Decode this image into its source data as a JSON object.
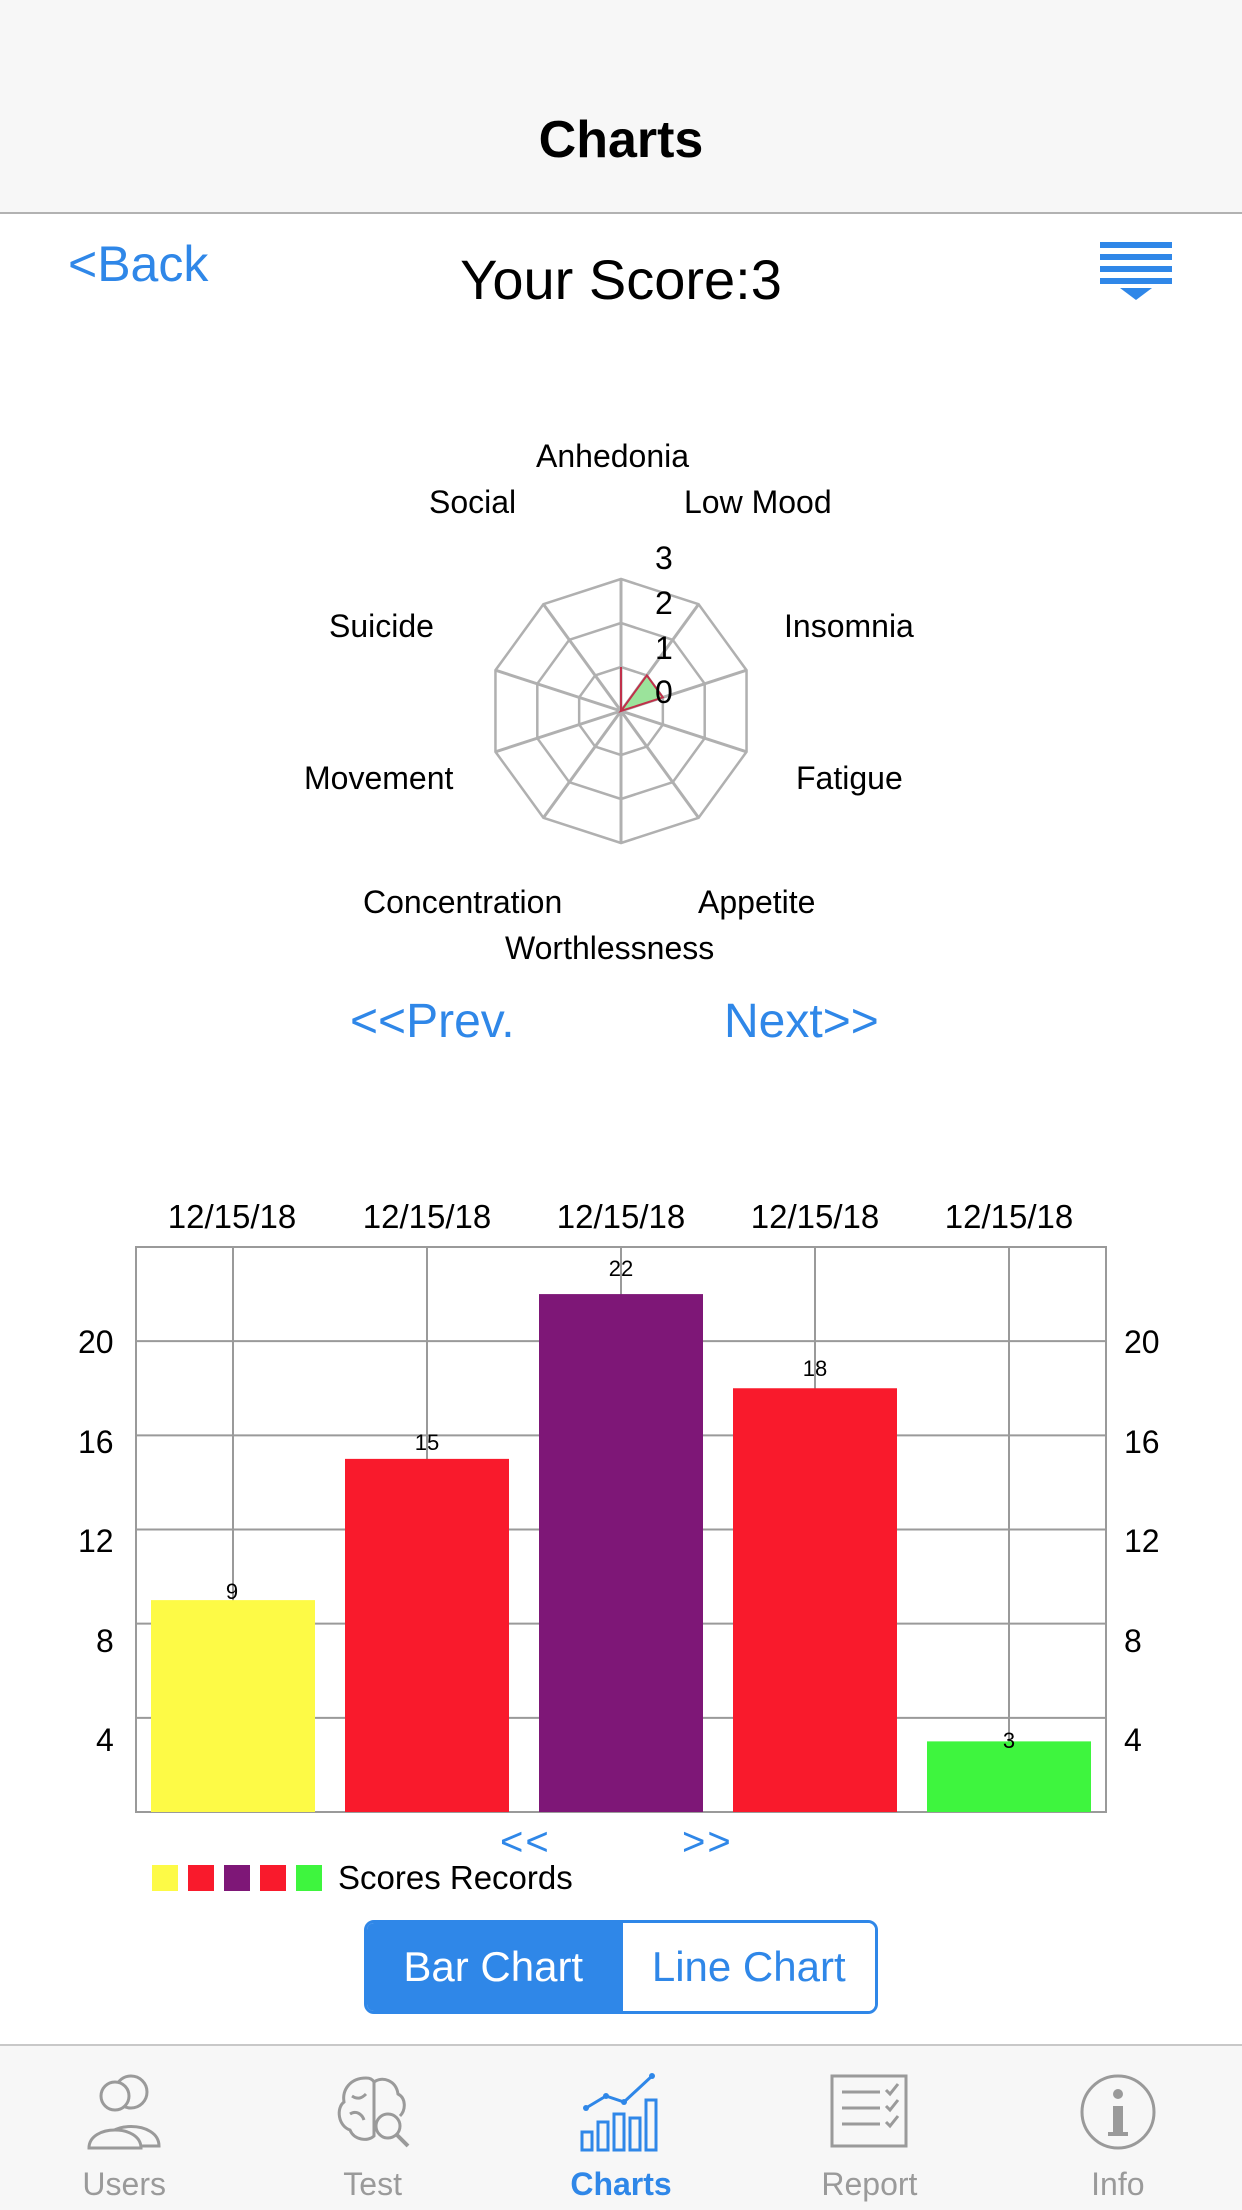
{
  "navbar": {
    "title": "Charts"
  },
  "header": {
    "back_label": "<Back",
    "score_label": "Your Score:3",
    "menu_icon": "menu-filter-icon"
  },
  "radar": {
    "labels": [
      "Anhedonia",
      "Low Mood",
      "Insomnia",
      "Fatigue",
      "Appetite",
      "Worthlessness",
      "Concentration",
      "Movement",
      "Suicide",
      "Social"
    ],
    "ticks": [
      "3",
      "2",
      "1",
      "0"
    ],
    "max": 3,
    "values": [
      0,
      1,
      1,
      0,
      0,
      0,
      0,
      0,
      0,
      0
    ],
    "colors": {
      "fill": "#9be39b",
      "outline": "#c0304a",
      "grid": "#b0b0b0"
    }
  },
  "pager": {
    "prev": "<<Prev.",
    "next": "Next>>"
  },
  "chart_data": {
    "type": "bar",
    "categories": [
      "12/15/18",
      "12/15/18",
      "12/15/18",
      "12/15/18",
      "12/15/18"
    ],
    "values": [
      9,
      15,
      22,
      18,
      3
    ],
    "value_labels": [
      "9",
      "15",
      "22",
      "18",
      "3"
    ],
    "colors": [
      "#fdfa46",
      "#f91a2c",
      "#7e1777",
      "#f91a2c",
      "#3ef53e"
    ],
    "yticks": [
      "4",
      "8",
      "12",
      "16",
      "20"
    ],
    "ylim": [
      0,
      24
    ],
    "grid": true,
    "legend": {
      "label": "Scores Records",
      "placement": "bottom-left"
    }
  },
  "bar_nav": {
    "prev": "<<",
    "next": ">>"
  },
  "segmented": {
    "bar": "Bar Chart",
    "line": "Line Chart"
  },
  "tabbar": {
    "items": [
      {
        "label": "Users",
        "icon": "users-icon"
      },
      {
        "label": "Test",
        "icon": "brain-search-icon"
      },
      {
        "label": "Charts",
        "icon": "charts-icon"
      },
      {
        "label": "Report",
        "icon": "report-checklist-icon"
      },
      {
        "label": "Info",
        "icon": "info-icon"
      }
    ],
    "selected": "Charts"
  }
}
